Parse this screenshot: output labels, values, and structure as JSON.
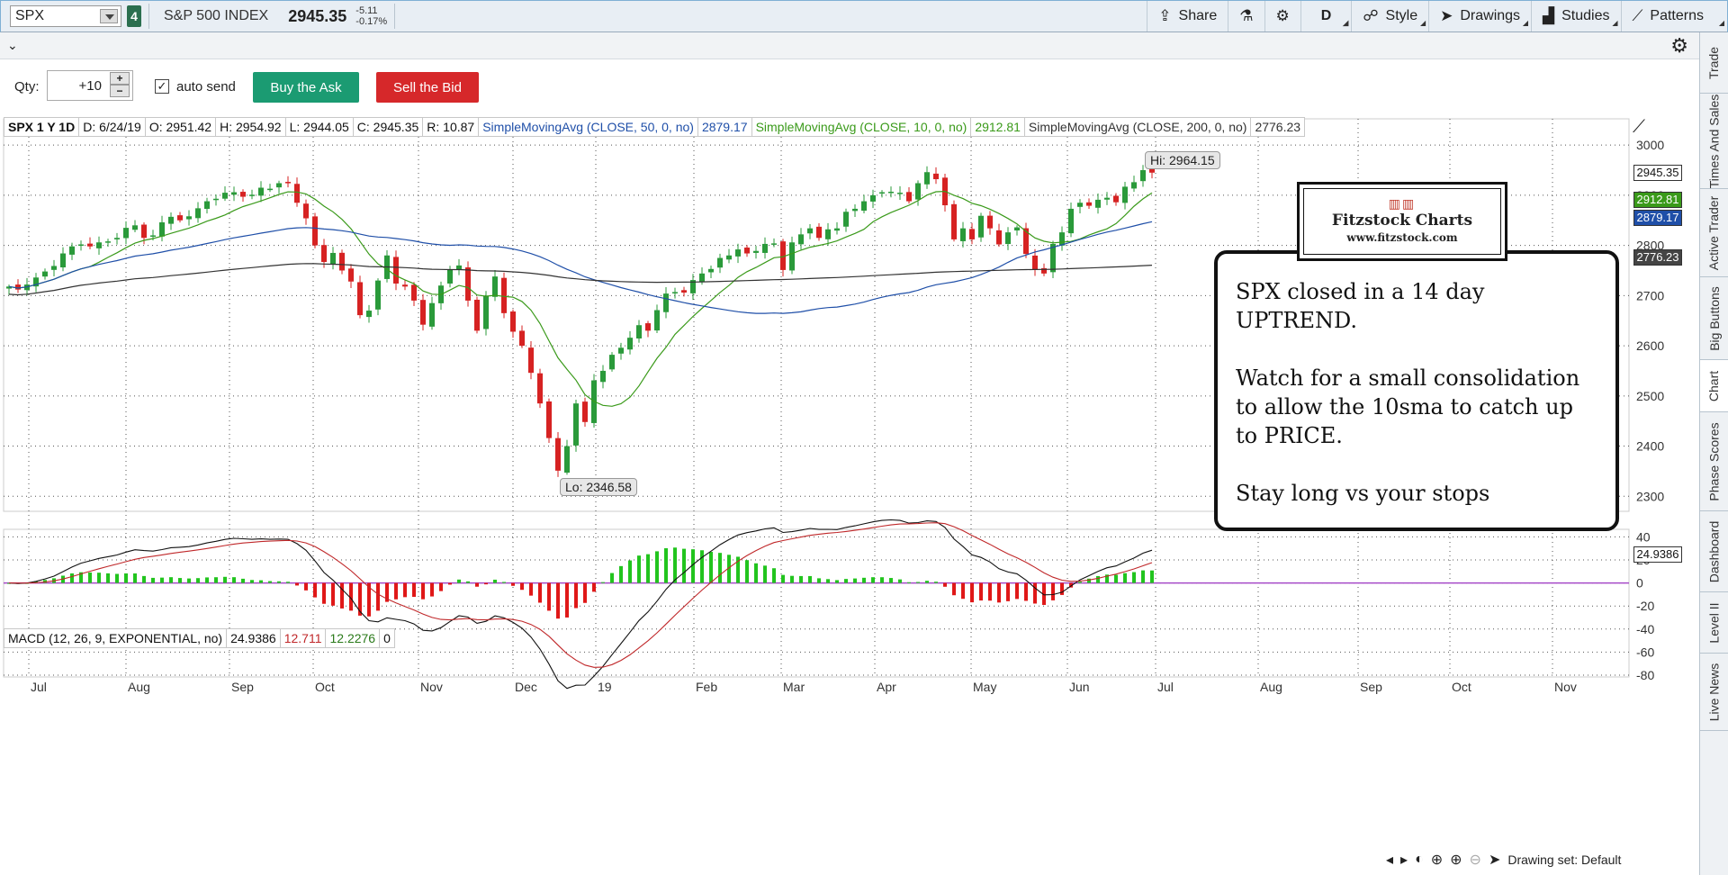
{
  "header": {
    "symbol": "SPX",
    "link_badge": "4",
    "symbol_name": "S&P 500 INDEX",
    "last_price": "2945.35",
    "change": "-5.11",
    "change_pct": "-0.17%",
    "share_label": "Share",
    "period_label": "D",
    "style_label": "Style",
    "drawings_label": "Drawings",
    "studies_label": "Studies",
    "patterns_label": "Patterns"
  },
  "order": {
    "qty_label": "Qty:",
    "qty_value": "+10",
    "auto_send_label": "auto send",
    "auto_send_checked": true,
    "buy_label": "Buy the Ask",
    "sell_label": "Sell the Bid",
    "buy_color": "#1b9b72",
    "sell_color": "#d6282a"
  },
  "price_stats": [
    {
      "text": "SPX 1 Y 1D",
      "color": "#111",
      "bold": true
    },
    {
      "text": "D: 6/24/19",
      "color": "#111"
    },
    {
      "text": "O: 2951.42",
      "color": "#111"
    },
    {
      "text": "H: 2954.92",
      "color": "#111"
    },
    {
      "text": "L: 2944.05",
      "color": "#111"
    },
    {
      "text": "C: 2945.35",
      "color": "#111"
    },
    {
      "text": "R: 10.87",
      "color": "#111"
    },
    {
      "text": "SimpleMovingAvg (CLOSE, 50, 0, no)",
      "color": "#1f4fa8"
    },
    {
      "text": "2879.17",
      "color": "#1f4fa8"
    },
    {
      "text": "SimpleMovingAvg (CLOSE, 10, 0, no)",
      "color": "#3a9a1a"
    },
    {
      "text": "2912.81",
      "color": "#3a9a1a"
    },
    {
      "text": "SimpleMovingAvg (CLOSE, 200, 0, no)",
      "color": "#333"
    },
    {
      "text": "2776.23",
      "color": "#333"
    }
  ],
  "macd_stats": [
    {
      "text": "MACD (12, 26, 9, EXPONENTIAL, no)",
      "color": "#111"
    },
    {
      "text": "24.9386",
      "color": "#111"
    },
    {
      "text": "12.711",
      "color": "#c0282a"
    },
    {
      "text": "12.2276",
      "color": "#2a7a1a"
    },
    {
      "text": "0",
      "color": "#111"
    }
  ],
  "chart_data": {
    "type": "candlestick",
    "price_axis": {
      "ticks": [
        2300,
        2400,
        2500,
        2600,
        2700,
        2800,
        2900,
        3000
      ],
      "range": [
        2270,
        3020
      ]
    },
    "macd_axis": {
      "ticks": [
        40,
        20,
        0,
        -20,
        -40,
        -60,
        -80
      ],
      "range": [
        -80,
        45
      ]
    },
    "time_axis": [
      "Jul",
      "Aug",
      "Sep",
      "Oct",
      "Nov",
      "Dec",
      "19",
      "Feb",
      "Mar",
      "Apr",
      "May",
      "Jun",
      "Jul",
      "Aug",
      "Sep",
      "Oct",
      "Nov"
    ],
    "closes": [
      2718,
      2712,
      2722,
      2736,
      2748,
      2759,
      2784,
      2798,
      2802,
      2798,
      2806,
      2808,
      2815,
      2835,
      2840,
      2815,
      2820,
      2846,
      2857,
      2850,
      2858,
      2874,
      2888,
      2893,
      2905,
      2906,
      2897,
      2901,
      2915,
      2913,
      2924,
      2926,
      2885,
      2854,
      2800,
      2767,
      2785,
      2750,
      2728,
      2661,
      2670,
      2730,
      2780,
      2724,
      2718,
      2690,
      2642,
      2685,
      2720,
      2752,
      2760,
      2690,
      2630,
      2700,
      2738,
      2665,
      2628,
      2600,
      2546,
      2485,
      2416,
      2351,
      2400,
      2485,
      2448,
      2531,
      2550,
      2582,
      2596,
      2616,
      2641,
      2630,
      2671,
      2704,
      2707,
      2706,
      2731,
      2744,
      2753,
      2775,
      2780,
      2792,
      2784,
      2789,
      2803,
      2804,
      2751,
      2806,
      2822,
      2834,
      2815,
      2832,
      2834,
      2867,
      2873,
      2888,
      2900,
      2906,
      2907,
      2905,
      2888,
      2924,
      2946,
      2932,
      2880,
      2812,
      2834,
      2812,
      2859,
      2834,
      2802,
      2826,
      2836,
      2783,
      2752,
      2744,
      2803,
      2826,
      2873,
      2885,
      2879,
      2891,
      2895,
      2886,
      2917,
      2926,
      2950,
      2945
    ],
    "sma10_last": 2912.81,
    "sma50_last": 2879.17,
    "sma200_last": 2776.23,
    "last_close": 2945.35,
    "hi_label": "Hi: 2964.15",
    "lo_label": "Lo: 2346.58",
    "up_color": "#2a9a3a",
    "down_color": "#d62222",
    "macd_value_tag": "24.9386"
  },
  "annotation": {
    "text": "SPX closed in a 14 day\nUPTREND.\n\nWatch for a small consolidation\nto allow the 10sma to catch up\nto PRICE.\n\nStay long vs your stops"
  },
  "logo": {
    "title": "Fitzstock Charts",
    "url": "www.fitzstock.com"
  },
  "sidebar_tabs": [
    "Trade",
    "Times And Sales",
    "Active Trader",
    "Big Buttons",
    "Chart",
    "Phase Scores",
    "Dashboard",
    "Level II",
    "Live News"
  ],
  "bottom": {
    "drawing_set": "Drawing set: Default"
  }
}
